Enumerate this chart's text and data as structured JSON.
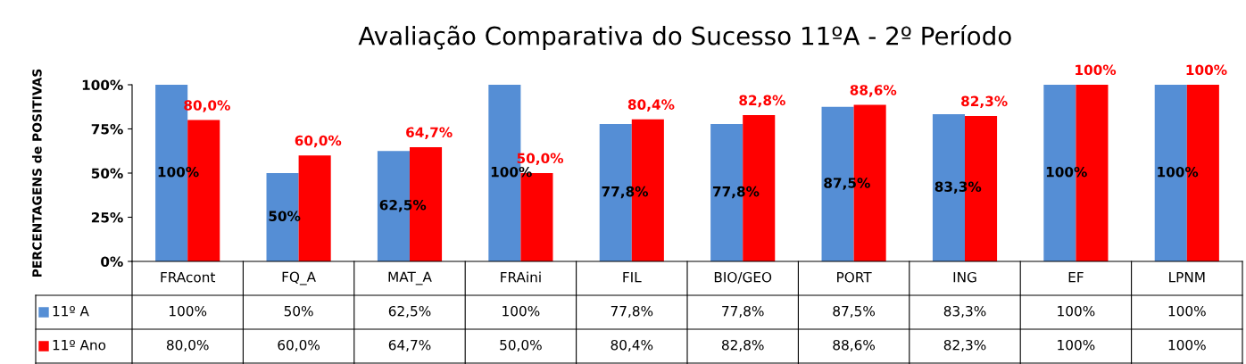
{
  "chart_data": {
    "type": "bar",
    "title": "Avaliação Comparativa do Sucesso 11ºA - 2º Período",
    "ylabel": "PERCENTAGENS de POSITIVAS",
    "categories": [
      "FRAcont",
      "FQ_A",
      "MAT_A",
      "FRAini",
      "FIL",
      "BIO/GEO",
      "PORT",
      "ING",
      "EF",
      "LPNM"
    ],
    "series": [
      {
        "name": "11º A",
        "color": "#558ed5",
        "values": [
          100,
          50,
          62.5,
          100,
          77.8,
          77.8,
          87.5,
          83.3,
          100,
          100
        ],
        "value_labels": [
          "100%",
          "50%",
          "62,5%",
          "100%",
          "77,8%",
          "77,8%",
          "87,5%",
          "83,3%",
          "100%",
          "100%"
        ]
      },
      {
        "name": "11º Ano",
        "color": "#ff0000",
        "values": [
          80,
          60,
          64.7,
          50,
          80.4,
          82.8,
          88.6,
          82.3,
          100,
          100
        ],
        "value_labels": [
          "80,0%",
          "60,0%",
          "64,7%",
          "50,0%",
          "80,4%",
          "82,8%",
          "88,6%",
          "82,3%",
          "100%",
          "100%"
        ]
      }
    ],
    "ylim": [
      0,
      100
    ],
    "yticks": [
      {
        "value": 0,
        "label": "0%"
      },
      {
        "value": 25,
        "label": "25%"
      },
      {
        "value": 50,
        "label": "50%"
      },
      {
        "value": 75,
        "label": "75%"
      },
      {
        "value": 100,
        "label": "100%"
      }
    ],
    "grid": false,
    "legend": "bottom left"
  }
}
